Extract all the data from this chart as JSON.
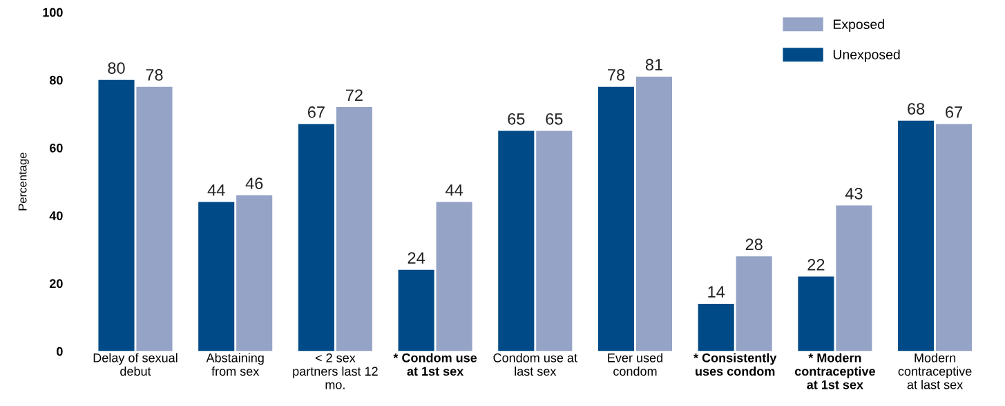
{
  "chart_data": {
    "type": "bar",
    "ylabel": "Percentage",
    "categories": [
      "Delay of sexual\ndebut",
      "Abstaining\nfrom sex",
      "< 2 sex\npartners last 12\nmo.",
      "* Condom use\nat 1st sex",
      "Condom use at\nlast sex",
      "Ever used\ncondom",
      "* Consistently\nuses condom",
      "* Modern\ncontraceptive\nat 1st sex",
      "Modern\ncontraceptive\nat last sex"
    ],
    "series": [
      {
        "name": "Unexposed",
        "color": "#004b87",
        "values": [
          80,
          44,
          67,
          24,
          65,
          78,
          14,
          22,
          68
        ]
      },
      {
        "name": "Exposed",
        "color": "#95a3c6",
        "values": [
          78,
          46,
          72,
          44,
          65,
          81,
          28,
          43,
          67
        ]
      }
    ],
    "ylim": [
      0,
      100
    ],
    "yticks": [
      0,
      20,
      40,
      60,
      80,
      100
    ],
    "grid": false,
    "legend": "top right",
    "data_labels": true
  }
}
